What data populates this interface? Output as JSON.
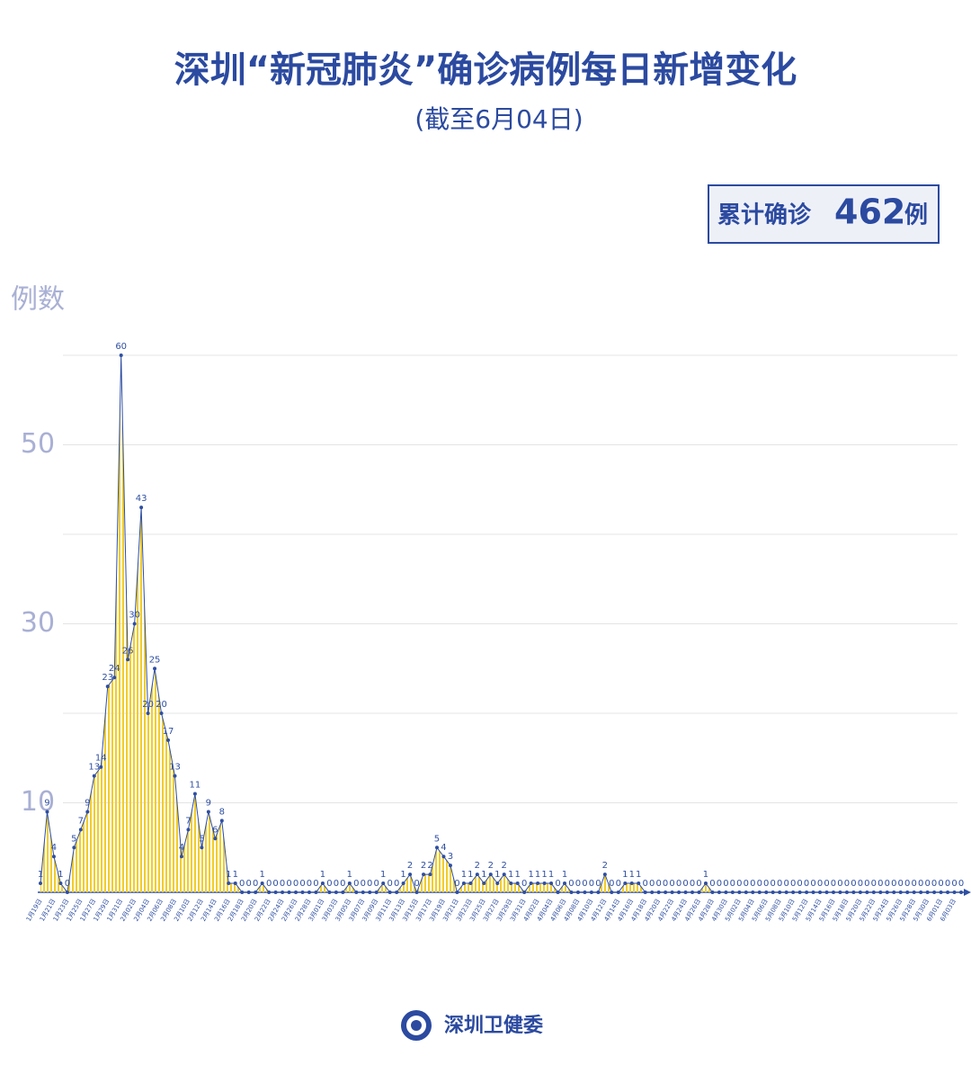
{
  "chart_data": {
    "type": "area",
    "title": "深圳“新冠肺炎”确诊病例每日新增变化",
    "subtitle": "(截至6月04日)",
    "total_prefix": "累计确诊",
    "total": 462,
    "total_suffix": "例",
    "ylabel": "例数",
    "source": "深圳卫健委",
    "categories": [
      "1月19日",
      null,
      "1月21日",
      null,
      "1月23日",
      null,
      "1月25日",
      null,
      "1月27日",
      null,
      "1月29日",
      null,
      "1月31日",
      null,
      "2月02日",
      null,
      "2月04日",
      null,
      "2月06日",
      null,
      "2月08日",
      null,
      "2月10日",
      null,
      "2月12日",
      null,
      "2月14日",
      null,
      "2月16日",
      null,
      "2月18日",
      null,
      "2月20日",
      null,
      "2月22日",
      null,
      "2月24日",
      null,
      "2月26日",
      null,
      "2月28日",
      null,
      "3月01日",
      null,
      "3月03日",
      null,
      "3月05日",
      null,
      "3月07日",
      null,
      "3月09日",
      null,
      "3月11日",
      null,
      "3月13日",
      null,
      "3月15日",
      null,
      "3月17日",
      null,
      "3月19日",
      null,
      "3月21日",
      null,
      "3月23日",
      null,
      "3月25日",
      null,
      "3月27日",
      null,
      "3月29日",
      null,
      "3月31日",
      null,
      "4月02日",
      null,
      "4月04日",
      null,
      "4月06日",
      null,
      "4月08日",
      null,
      "4月10日",
      null,
      "4月12日",
      null,
      "4月14日",
      null,
      "4月16日",
      null,
      "4月18日",
      null,
      "4月20日",
      null,
      "4月22日",
      null,
      "4月24日",
      null,
      "4月26日",
      null,
      "4月28日",
      null,
      "4月30日",
      null,
      "5月02日",
      null,
      "5月04日",
      null,
      "5月06日",
      null,
      "5月08日",
      null,
      "5月10日",
      null,
      "5月12日",
      null,
      "5月14日",
      null,
      "5月16日",
      null,
      "5月18日",
      null,
      "5月20日",
      null,
      "5月22日",
      null,
      "5月24日",
      null,
      "5月26日",
      null,
      "5月28日",
      null,
      "5月30日",
      null,
      "6月01日",
      null,
      "6月03日",
      null
    ],
    "values": [
      1,
      9,
      4,
      1,
      0,
      5,
      7,
      9,
      13,
      14,
      23,
      24,
      60,
      26,
      30,
      43,
      20,
      25,
      20,
      17,
      13,
      4,
      7,
      11,
      5,
      9,
      6,
      8,
      1,
      1,
      0,
      0,
      0,
      1,
      0,
      0,
      0,
      0,
      0,
      0,
      0,
      0,
      1,
      0,
      0,
      0,
      1,
      0,
      0,
      0,
      0,
      1,
      0,
      0,
      1,
      2,
      0,
      2,
      2,
      5,
      4,
      3,
      0,
      1,
      1,
      2,
      1,
      2,
      1,
      2,
      1,
      1,
      0,
      1,
      1,
      1,
      1,
      0,
      1,
      0,
      0,
      0,
      0,
      0,
      2,
      0,
      0,
      1,
      1,
      1,
      0,
      0,
      0,
      0,
      0,
      0,
      0,
      0,
      0,
      1,
      0,
      0,
      0,
      0,
      0,
      0,
      0,
      0,
      0,
      0,
      0,
      0,
      0,
      0,
      0,
      0,
      0,
      0,
      0,
      0,
      0,
      0,
      0,
      0,
      0,
      0,
      0,
      0,
      0,
      0,
      0,
      0,
      0,
      0,
      0,
      0,
      0,
      0
    ],
    "color": "#2f4fa2",
    "fill_color": "#f2cc2a",
    "ylim": [
      0,
      60
    ],
    "yticks": [
      10,
      30,
      50
    ],
    "grid_lines": [
      10,
      20,
      30,
      40,
      50,
      60
    ],
    "grid": true
  }
}
